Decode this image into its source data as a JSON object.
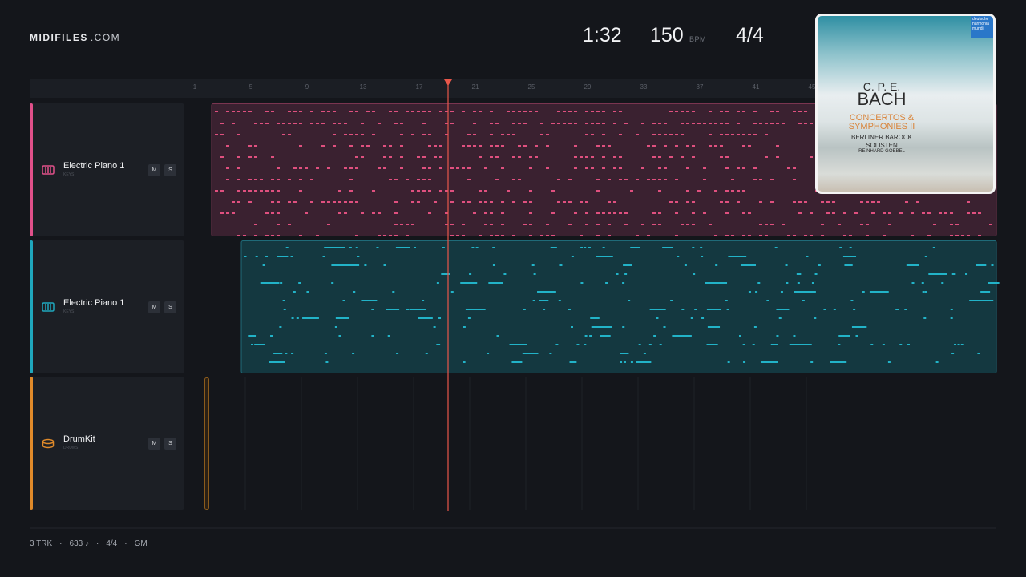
{
  "header": {
    "logo": "MIDIFILES",
    "logo_suffix": ".COM"
  },
  "transport": {
    "time": "1:32",
    "tempo": "150",
    "tempo_unit": "BPM",
    "meter": "4/4"
  },
  "ruler": {
    "bars": [
      "1",
      "5",
      "9",
      "13",
      "17",
      "21",
      "25",
      "29",
      "33",
      "37",
      "41",
      "45"
    ]
  },
  "tracks": [
    {
      "name": "Electric Piano 1",
      "category": "KEYS",
      "mute": "M",
      "solo": "S"
    },
    {
      "name": "Electric Piano 1",
      "category": "KEYS",
      "mute": "M",
      "solo": "S"
    },
    {
      "name": "DrumKit",
      "category": "DRUMS",
      "mute": "M",
      "solo": "S"
    }
  ],
  "footer": {
    "items": [
      "3 TRK",
      "633 ♪",
      "4/4",
      "GM"
    ],
    "separator": "·"
  },
  "album": {
    "label": "deutsche harmonia mundi",
    "composer_initials": "C. P. E.",
    "composer": "BACH",
    "title": "CONCERTOS & SYMPHONIES II",
    "ensemble": "BERLINER BAROCK SOLISTEN",
    "conductor": "REINHARD GOEBEL"
  }
}
